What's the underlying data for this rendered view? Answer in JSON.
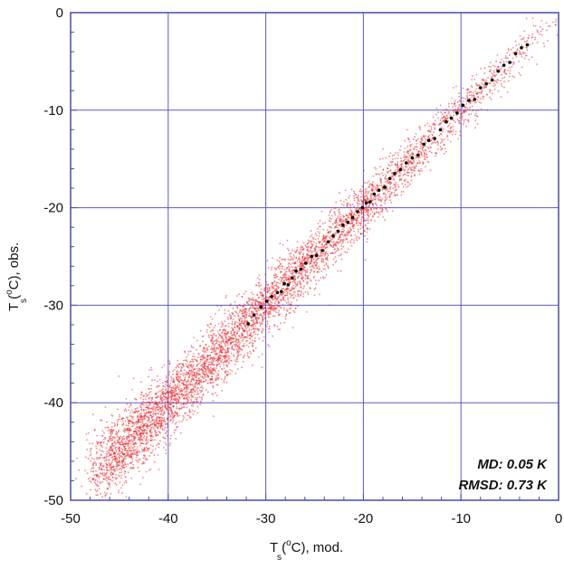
{
  "chart_data": {
    "type": "scatter",
    "xlabel": {
      "pre": "T",
      "sub": "s",
      "mid": " (",
      "sup": "o",
      "post": "C), mod."
    },
    "ylabel": {
      "pre": "T",
      "sub": "s",
      "mid": " (",
      "sup": "o",
      "post": "C), obs."
    },
    "xlim": [
      -50,
      0
    ],
    "ylim": [
      -50,
      0
    ],
    "xticks": [
      -50,
      -40,
      -30,
      -20,
      -10,
      0
    ],
    "yticks": [
      -50,
      -40,
      -30,
      -20,
      -10,
      0
    ],
    "x_tick_labels": [
      "-50",
      "-40",
      "-30",
      "-20",
      "-10",
      "0"
    ],
    "y_tick_labels": [
      "-50",
      "-40",
      "-30",
      "-20",
      "-10",
      "0"
    ],
    "grid": true,
    "annotations": [
      "MD: 0.05 K",
      "RMSD: 0.73 K"
    ],
    "colors": {
      "cloud": "#e8242a",
      "points": "#000000",
      "grid": "#5a5ac8",
      "frame": "#4a4aa8"
    },
    "series": [
      {
        "style": "red density cloud",
        "range_x": [
          -47,
          0
        ],
        "spread": 0.73
      },
      {
        "style": "black points",
        "x": [
          -31.8,
          -31.2,
          -30.5,
          -29.9,
          -29.4,
          -28.8,
          -28.4,
          -28.1,
          -27.7,
          -27.3,
          -26.9,
          -26.4,
          -25.9,
          -25.3,
          -24.8,
          -24.2,
          -23.6,
          -23.1,
          -22.6,
          -22.1,
          -21.6,
          -21.1,
          -20.6,
          -20.1,
          -19.7,
          -19.3,
          -18.9,
          -18.4,
          -17.8,
          -17.3,
          -16.8,
          -16.2,
          -15.6,
          -15.0,
          -14.4,
          -13.8,
          -13.3,
          -12.7,
          -12.1,
          -11.5,
          -11.0,
          -10.4,
          -9.8,
          -9.2,
          -8.6,
          -8.0,
          -7.4,
          -6.8,
          -6.2,
          -5.6,
          -5.0,
          -4.4,
          -3.8,
          -3.2
        ],
        "y": [
          -31.9,
          -31.0,
          -30.2,
          -29.6,
          -29.1,
          -28.7,
          -28.6,
          -27.8,
          -27.9,
          -27.2,
          -26.5,
          -26.3,
          -25.7,
          -25.0,
          -24.9,
          -24.4,
          -23.5,
          -22.9,
          -22.4,
          -21.8,
          -21.5,
          -21.0,
          -20.4,
          -20.0,
          -19.5,
          -19.4,
          -18.6,
          -18.2,
          -17.9,
          -17.0,
          -16.5,
          -16.1,
          -15.4,
          -14.9,
          -14.6,
          -13.5,
          -13.1,
          -12.9,
          -12.0,
          -11.2,
          -10.8,
          -10.3,
          -9.5,
          -9.0,
          -8.9,
          -7.7,
          -7.3,
          -6.9,
          -6.0,
          -5.4,
          -5.1,
          -4.2,
          -3.6,
          -3.3
        ]
      }
    ]
  }
}
